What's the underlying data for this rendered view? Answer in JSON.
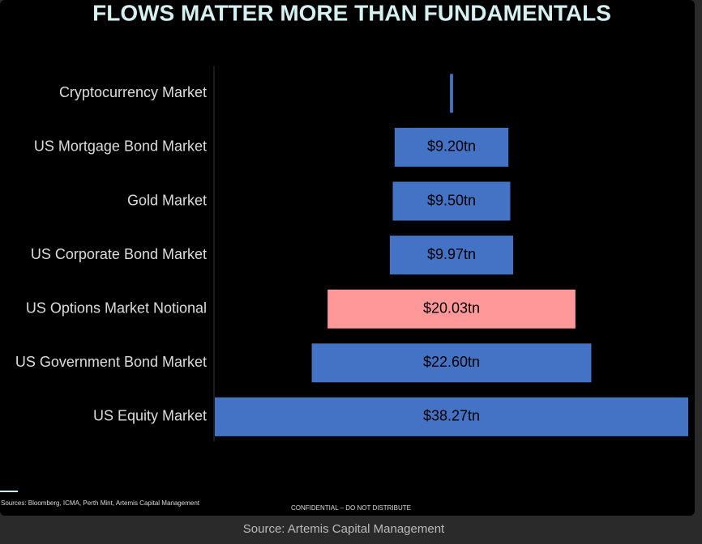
{
  "chart_data": {
    "type": "funnel",
    "title": "FLOWS MATTER MORE THAN FUNDAMENTALS",
    "categories": [
      "Cryptocurrency Market",
      "US Mortgage Bond Market",
      "Gold Market",
      "US Corporate Bond Market",
      "US Options Market Notional",
      "US Government Bond Market",
      "US Equity Market"
    ],
    "values": [
      0.25,
      9.2,
      9.5,
      9.97,
      20.03,
      22.6,
      38.27
    ],
    "value_labels": [
      null,
      "$9.20tn",
      "$9.50tn",
      "$9.97tn",
      "$20.03tn",
      "$22.60tn",
      "$38.27tn"
    ],
    "colors": [
      "#4472c4",
      "#4472c4",
      "#4472c4",
      "#4472c4",
      "#ff9999",
      "#4472c4",
      "#4472c4"
    ],
    "sources": "Sources: Bloomberg, ICMA, Perth Mint, Artemis Capital Management",
    "notice": "CONFIDENTIAL  – DO NOT DISTRIBUTE",
    "caption": "Source: Artemis Capital Management"
  }
}
